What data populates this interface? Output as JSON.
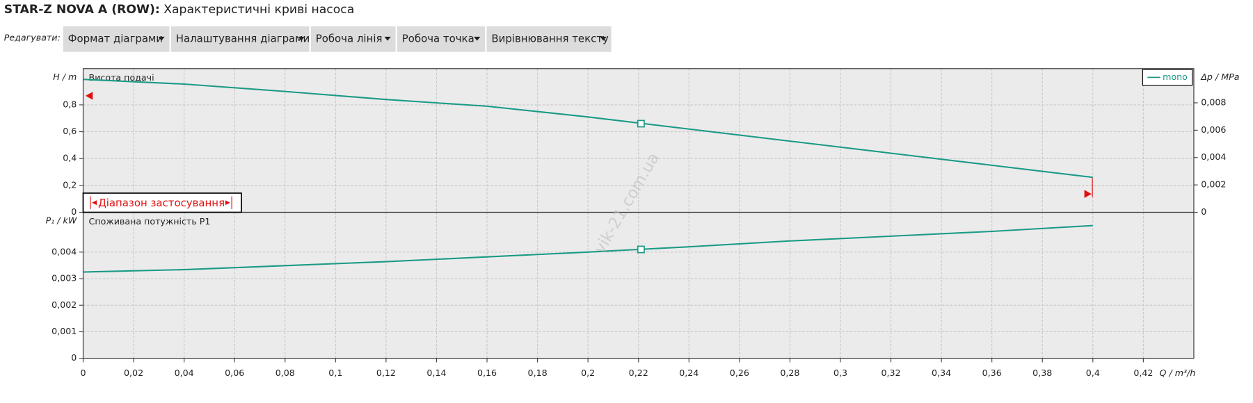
{
  "header": {
    "title_bold": "STAR-Z NOVA A (ROW):",
    "title": "Характеристичні криві насоса"
  },
  "toolbar": {
    "label": "Редагувати:",
    "items": [
      "Формат діаграми",
      "Налаштування діаграми",
      "Робоча лінія",
      "Робоча точка",
      "Вирівнювання тексту"
    ]
  },
  "watermark": "vik-21.com.ua",
  "chart_data": [
    {
      "type": "line",
      "plot_label": "Висота подачі",
      "y_label": "H / m",
      "y2_label": "Δp / MPa",
      "range_label": "Діапазон застосування",
      "x": [
        0,
        0.04,
        0.08,
        0.12,
        0.16,
        0.2,
        0.24,
        0.28,
        0.32,
        0.36,
        0.4
      ],
      "series": [
        {
          "name": "mono",
          "color": "#1a9a86",
          "values": [
            0.99,
            0.955,
            0.9,
            0.84,
            0.79,
            0.71,
            0.62,
            0.53,
            0.44,
            0.35,
            0.26
          ]
        }
      ],
      "operating_point": {
        "x": 0.221,
        "y": 0.66
      },
      "xlim": [
        0,
        0.44
      ],
      "xticks": [
        0,
        0.02,
        0.04,
        0.06,
        0.08,
        0.1,
        0.12,
        0.14,
        0.16,
        0.18,
        0.2,
        0.22,
        0.24,
        0.26,
        0.28,
        0.3,
        0.32,
        0.34,
        0.36,
        0.38,
        0.4,
        0.42
      ],
      "ylim": [
        0,
        1.07
      ],
      "yticks": [
        0,
        {
          "value": 0.2,
          "label": "0,2"
        },
        {
          "value": 0.4,
          "label": "0,4"
        },
        {
          "value": 0.6,
          "label": "0,6"
        },
        {
          "value": 0.8,
          "label": "0,8"
        }
      ],
      "y2lim": [
        0,
        0.0105
      ],
      "y2ticks": [
        0,
        {
          "value": 0.002,
          "label": "0,002"
        },
        {
          "value": 0.004,
          "label": "0,004"
        },
        {
          "value": 0.006,
          "label": "0,006"
        },
        {
          "value": 0.008,
          "label": "0,008"
        }
      ],
      "grid": true,
      "legend": "top-right"
    },
    {
      "type": "line",
      "plot_label": "Споживана потужність P1",
      "y_label": "P₁ / kW",
      "x_label": "Q / m³/h",
      "x": [
        0,
        0.04,
        0.08,
        0.12,
        0.16,
        0.2,
        0.24,
        0.28,
        0.32,
        0.36,
        0.4
      ],
      "series": [
        {
          "color": "#1a9a86",
          "values": [
            0.00325,
            0.00334,
            0.00349,
            0.00364,
            0.00382,
            0.004,
            0.0042,
            0.00442,
            0.0046,
            0.00478,
            0.005
          ]
        }
      ],
      "operating_point": {
        "x": 0.221,
        "y": 0.0041
      },
      "xlim": [
        0,
        0.44
      ],
      "xticks": [
        0,
        {
          "value": 0.02,
          "label": "0,02"
        },
        {
          "value": 0.04,
          "label": "0,04"
        },
        {
          "value": 0.06,
          "label": "0,06"
        },
        {
          "value": 0.08,
          "label": "0,08"
        },
        {
          "value": 0.1,
          "label": "0,1"
        },
        {
          "value": 0.12,
          "label": "0,12"
        },
        {
          "value": 0.14,
          "label": "0,14"
        },
        {
          "value": 0.16,
          "label": "0,16"
        },
        {
          "value": 0.18,
          "label": "0,18"
        },
        {
          "value": 0.2,
          "label": "0,2"
        },
        {
          "value": 0.22,
          "label": "0,22"
        },
        {
          "value": 0.24,
          "label": "0,24"
        },
        {
          "value": 0.26,
          "label": "0,26"
        },
        {
          "value": 0.28,
          "label": "0,28"
        },
        {
          "value": 0.3,
          "label": "0,3"
        },
        {
          "value": 0.32,
          "label": "0,32"
        },
        {
          "value": 0.34,
          "label": "0,34"
        },
        {
          "value": 0.36,
          "label": "0,36"
        },
        {
          "value": 0.38,
          "label": "0,38"
        },
        {
          "value": 0.4,
          "label": "0,4"
        },
        {
          "value": 0.42,
          "label": "0,42"
        }
      ],
      "ylim": [
        0,
        0.0055
      ],
      "yticks": [
        0,
        {
          "value": 0.001,
          "label": "0,001"
        },
        {
          "value": 0.002,
          "label": "0,002"
        },
        {
          "value": 0.003,
          "label": "0,003"
        },
        {
          "value": 0.004,
          "label": "0,004"
        }
      ],
      "grid": true
    }
  ]
}
